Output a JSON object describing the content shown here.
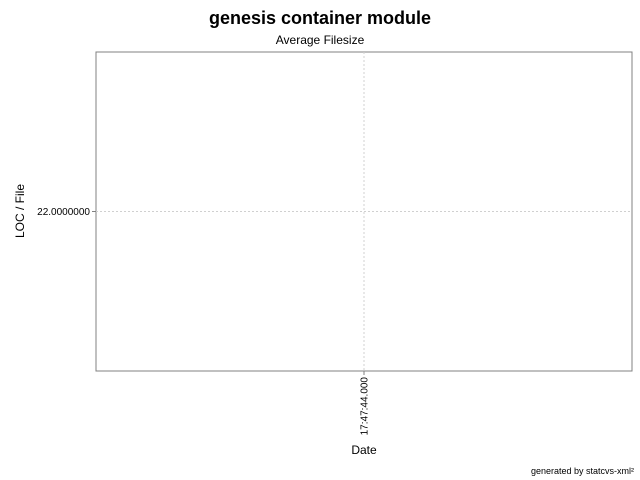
{
  "chart_data": {
    "type": "line",
    "title": "genesis container module",
    "subtitle": "Average Filesize",
    "xlabel": "Date",
    "ylabel": "LOC / File",
    "x_ticks": [
      "17:47:44.000"
    ],
    "y_ticks": [
      {
        "value": 22.0,
        "label": "22.0000000"
      }
    ],
    "series": [
      {
        "x": [
          "17:47:44.000"
        ],
        "values": [
          22.0
        ]
      }
    ],
    "ylim": [
      21.0,
      23.0
    ],
    "grid": true,
    "legend": "none"
  },
  "footer": {
    "credit": "generated by statcvs-xml²"
  },
  "colors": {
    "grid": "#d0d0d0",
    "frame": "#808080",
    "text": "#000000"
  }
}
